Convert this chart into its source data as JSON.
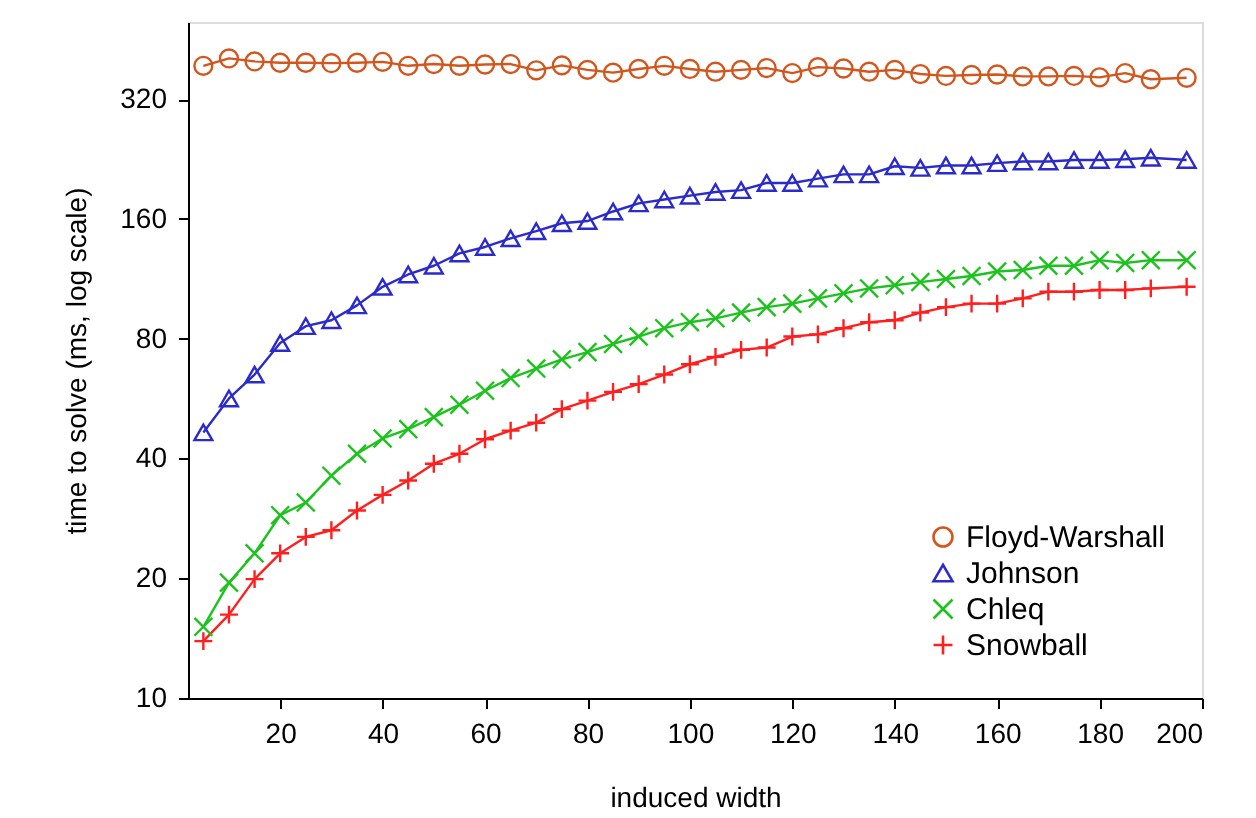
{
  "chart_data": {
    "type": "line",
    "xlabel": "induced width",
    "ylabel": "time to solve (ms, log scale)",
    "x": [
      5,
      10,
      15,
      20,
      25,
      30,
      35,
      40,
      45,
      50,
      55,
      60,
      65,
      70,
      75,
      80,
      85,
      90,
      95,
      100,
      105,
      110,
      115,
      120,
      125,
      130,
      135,
      140,
      145,
      150,
      155,
      160,
      165,
      170,
      175,
      180,
      185,
      190,
      197
    ],
    "series": [
      {
        "name": "Floyd-Warshall",
        "color": "#d2571f",
        "marker": "circle",
        "values": [
          388,
          405,
          398,
          395,
          395,
          394,
          395,
          397,
          388,
          392,
          388,
          391,
          392,
          378,
          389,
          379,
          373,
          381,
          388,
          381,
          375,
          379,
          383,
          372,
          385,
          382,
          375,
          379,
          370,
          366,
          368,
          369,
          365,
          365,
          366,
          363,
          372,
          359,
          362
        ]
      },
      {
        "name": "Johnson",
        "color": "#2b2bcc",
        "marker": "triangle",
        "values": [
          46.5,
          56.6,
          65,
          78,
          86,
          89,
          97,
          108,
          116,
          122,
          131,
          136,
          143,
          149,
          156,
          158,
          167,
          175,
          179,
          183,
          187,
          189,
          197,
          197,
          202,
          207,
          207,
          217,
          215,
          218,
          218,
          221,
          223,
          223,
          225,
          225,
          226,
          228,
          225
        ]
      },
      {
        "name": "Chleq",
        "color": "#1ec21e",
        "marker": "x",
        "values": [
          15.1,
          19.5,
          23.1,
          28.8,
          31,
          36.2,
          41.1,
          44.9,
          47.4,
          50.8,
          54.6,
          59.2,
          63.7,
          67.3,
          71,
          74,
          77.6,
          81,
          85,
          88,
          90,
          93,
          96,
          98,
          101,
          104,
          107,
          109,
          111,
          113,
          115,
          118,
          119,
          122,
          122,
          126,
          124,
          126,
          126
        ]
      },
      {
        "name": "Snowball",
        "color": "#ff1f1f",
        "marker": "cross",
        "values": [
          13.9,
          16.2,
          19.9,
          23.1,
          25.4,
          26.4,
          29.6,
          32.4,
          35.2,
          38.8,
          41.1,
          44.7,
          47,
          49.2,
          53.2,
          55.9,
          58.8,
          61.5,
          65,
          69,
          72,
          75,
          76,
          81,
          82,
          85,
          88,
          89,
          93,
          96,
          98,
          98,
          101,
          105,
          105,
          106,
          106,
          107,
          108
        ]
      }
    ],
    "xlim": [
      2,
      200
    ],
    "xticks": [
      20,
      40,
      60,
      80,
      100,
      120,
      140,
      160,
      180,
      200
    ],
    "ylim": [
      10,
      500
    ],
    "yticks": [
      10,
      20,
      40,
      80,
      160,
      320
    ],
    "log": true,
    "grid": false,
    "legend": "bottom right",
    "line_style": "solid"
  }
}
